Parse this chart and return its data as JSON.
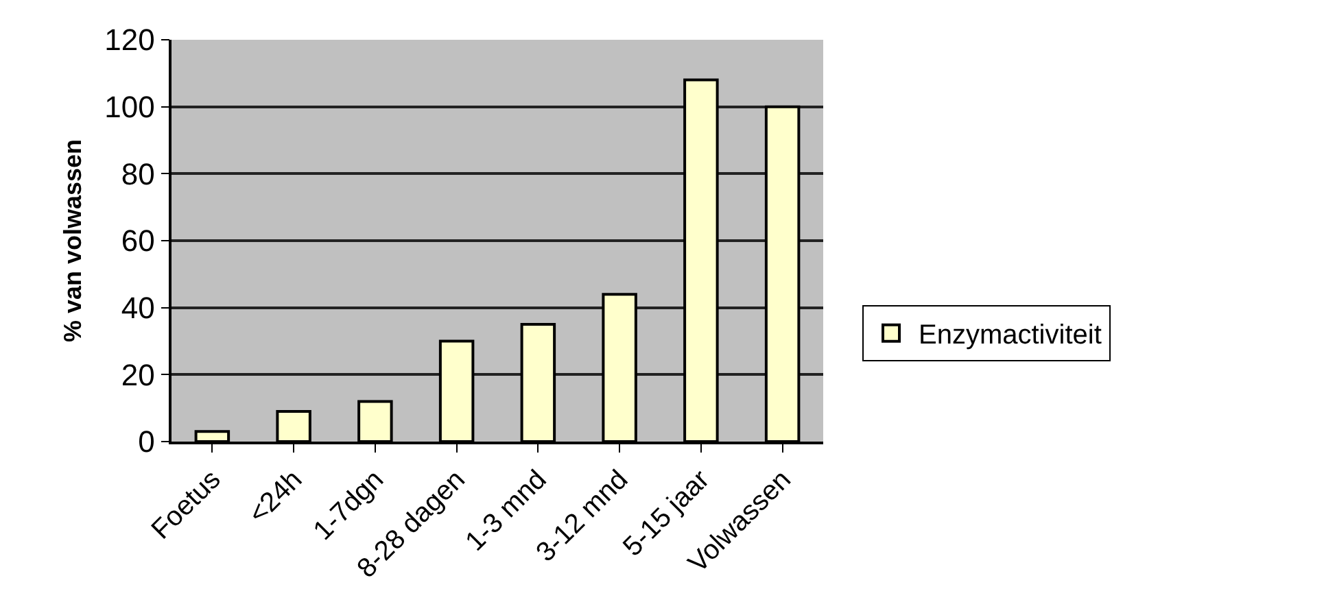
{
  "chart_data": {
    "type": "bar",
    "ylabel": "% van volwassen",
    "categories": [
      "Foetus",
      "<24h",
      "1-7dgn",
      "8-28 dagen",
      "1-3 mnd",
      "3-12 mnd",
      "5-15 jaar",
      "Volwassen"
    ],
    "series": [
      {
        "name": "Enzymactiviteit",
        "color": "#ffffcc",
        "values": [
          3,
          9,
          12,
          30,
          35,
          44,
          108,
          100
        ]
      }
    ],
    "ylim": [
      0,
      120
    ],
    "yticks": [
      0,
      20,
      40,
      60,
      80,
      100,
      120
    ],
    "grid": "y",
    "legend": "right"
  }
}
